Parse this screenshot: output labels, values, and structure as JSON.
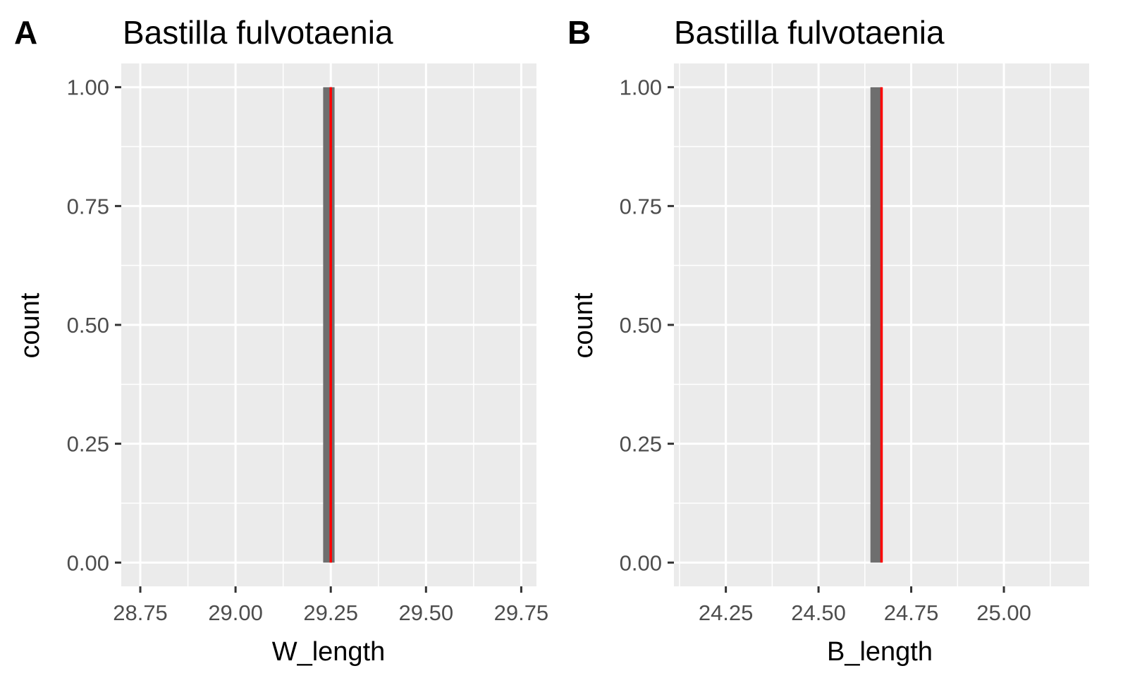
{
  "chart_data": [
    {
      "type": "bar",
      "panel_label": "A",
      "title": "Bastilla fulvotaenia",
      "xlabel": "W_length",
      "ylabel": "count",
      "xlim": [
        28.7,
        29.79
      ],
      "ylim": [
        -0.05,
        1.05
      ],
      "x_ticks": [
        28.75,
        29.0,
        29.25,
        29.5,
        29.75
      ],
      "x_tick_labels": [
        "28.75",
        "29.00",
        "29.25",
        "29.50",
        "29.75"
      ],
      "y_ticks": [
        0,
        0.25,
        0.5,
        0.75,
        1.0
      ],
      "y_tick_labels": [
        "0.00",
        "0.25",
        "0.50",
        "0.75",
        "1.00"
      ],
      "bars": [
        {
          "xmin": 29.23,
          "xmax": 29.26,
          "count": 1
        }
      ],
      "vline": 29.25,
      "grid": true,
      "colors": {
        "bar": "#6e6e6e",
        "vline": "#ff0000",
        "panel": "#ebebeb",
        "grid": "#ffffff"
      }
    },
    {
      "type": "bar",
      "panel_label": "B",
      "title": "Bastilla fulvotaenia",
      "xlabel": "B_length",
      "ylabel": "count",
      "xlim": [
        24.11,
        25.23
      ],
      "ylim": [
        -0.05,
        1.05
      ],
      "x_ticks": [
        24.25,
        24.5,
        24.75,
        25.0
      ],
      "x_tick_labels": [
        "24.25",
        "24.50",
        "24.75",
        "25.00"
      ],
      "y_ticks": [
        0,
        0.25,
        0.5,
        0.75,
        1.0
      ],
      "y_tick_labels": [
        "0.00",
        "0.25",
        "0.50",
        "0.75",
        "1.00"
      ],
      "bars": [
        {
          "xmin": 24.64,
          "xmax": 24.67,
          "count": 1
        }
      ],
      "vline": 24.67,
      "grid": true,
      "colors": {
        "bar": "#6e6e6e",
        "vline": "#ff0000",
        "panel": "#ebebeb",
        "grid": "#ffffff"
      }
    }
  ]
}
